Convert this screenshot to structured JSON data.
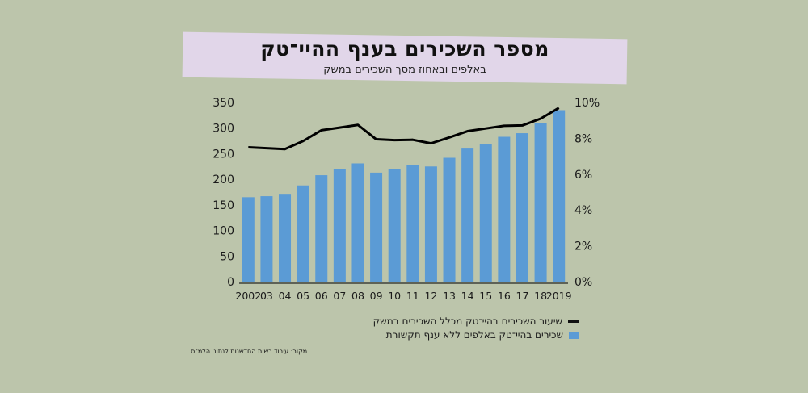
{
  "title": "מספר השכירים בענף ההיי־טק",
  "subtitle": "באלפים ובאחוז מסך השכירים במשק",
  "source": "מקור: עיבוד רשות החדשנות לנתוני הלמ\"ס",
  "legend": {
    "line_label": "שיעור השכירים בהיי־טק מכלל השכירים במשק",
    "bar_label": "שכירים בהיי־טק באלפים ללא ענף תקשורת"
  },
  "colors": {
    "bar": "#5b9bd5",
    "line": "#000000",
    "background": "#bcc5ab",
    "banner": "#e1d6e9"
  },
  "chart_data": {
    "type": "bar",
    "categories": [
      "2002",
      "03",
      "04",
      "05",
      "06",
      "07",
      "08",
      "09",
      "10",
      "11",
      "12",
      "13",
      "14",
      "15",
      "16",
      "17",
      "18",
      "2019"
    ],
    "series": [
      {
        "name": "שכירים בהיי־טק באלפים ללא ענף תקשורת",
        "type": "bar",
        "axis": "left",
        "values": [
          165,
          167,
          170,
          188,
          208,
          220,
          231,
          213,
          220,
          228,
          225,
          242,
          260,
          268,
          283,
          290,
          310,
          335
        ]
      },
      {
        "name": "שיעור השכירים בהיי־טק מכלל השכירים במשק",
        "type": "line",
        "axis": "right",
        "values": [
          7.5,
          7.45,
          7.4,
          7.85,
          8.45,
          8.6,
          8.75,
          7.95,
          7.9,
          7.92,
          7.72,
          8.05,
          8.4,
          8.55,
          8.7,
          8.72,
          9.1,
          9.7
        ]
      }
    ],
    "y_left": {
      "ticks": [
        "0",
        "50",
        "100",
        "150",
        "200",
        "250",
        "300",
        "350"
      ],
      "ylim": [
        0,
        350
      ]
    },
    "y_right": {
      "ticks": [
        "0%",
        "2%",
        "4%",
        "6%",
        "8%",
        "10%"
      ],
      "ylim": [
        0,
        10
      ]
    }
  }
}
